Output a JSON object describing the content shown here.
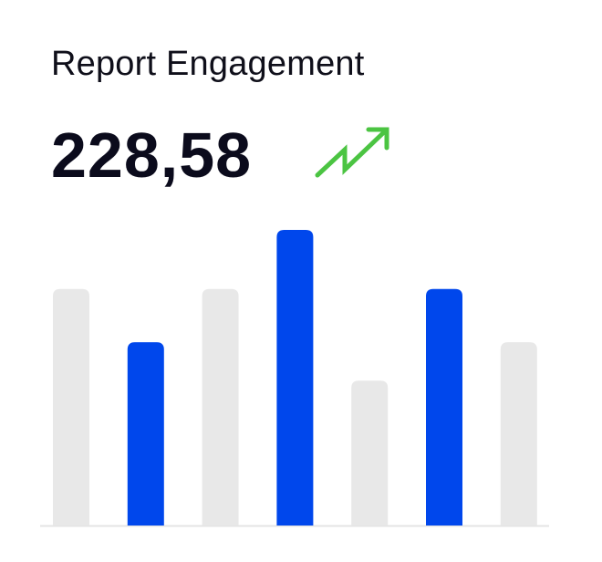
{
  "header": {
    "title": "Report Engagement",
    "metric_value": "228,58",
    "trend_icon": "trend-up-arrow-icon"
  },
  "colors": {
    "highlight": "#0047ec",
    "muted": "#e8e8e8",
    "trend": "#4bc442",
    "baseline": "#e4e4e4",
    "text": "#0b0b1c"
  },
  "chart_data": {
    "type": "bar",
    "title": "",
    "xlabel": "",
    "ylabel": "",
    "grid": false,
    "ylim": [
      0,
      100
    ],
    "categories": [
      "",
      "",
      "",
      "",
      "",
      "",
      ""
    ],
    "values": [
      80,
      62,
      80,
      100,
      49,
      80,
      62
    ],
    "highlighted": [
      false,
      true,
      false,
      true,
      false,
      true,
      false
    ]
  }
}
